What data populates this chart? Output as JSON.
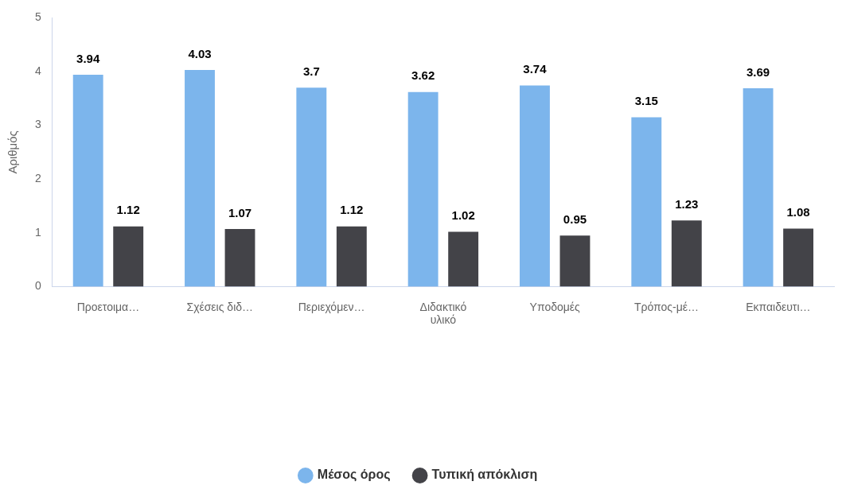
{
  "chart_data": {
    "type": "bar",
    "ylabel": "Αριθμός",
    "categories": [
      "Προετοιμα…",
      "Σχέσεις διδ…",
      "Περιεχόμεν…",
      "Διδακτικό\nυλικό",
      "Υποδομές",
      "Τρόπος-μέ…",
      "Εκπαιδευτι…"
    ],
    "series": [
      {
        "name": "Μέσος όρος",
        "color": "#7cb5ec",
        "values": [
          3.94,
          4.03,
          3.7,
          3.62,
          3.74,
          3.15,
          3.69
        ]
      },
      {
        "name": "Τυπική απόκλιση",
        "color": "#434348",
        "values": [
          1.12,
          1.07,
          1.12,
          1.02,
          0.95,
          1.23,
          1.08
        ]
      }
    ],
    "ylim": [
      0,
      5
    ],
    "yticks": [
      0,
      1,
      2,
      3,
      4,
      5
    ],
    "grid": false,
    "legend": "bottom",
    "data_labels": true
  }
}
